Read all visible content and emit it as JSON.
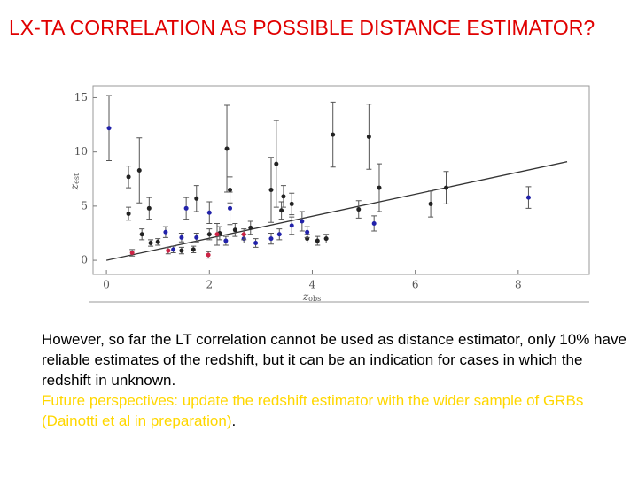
{
  "slide_title": "LX-TA CORRELATION AS POSSIBLE DISTANCE ESTIMATOR?",
  "body": {
    "text": "However, so far the LT correlation cannot be used as distance estimator, only 10% have reliable estimates of the redshift, but it can be an indication for cases in which the redshift in unknown.",
    "highlight": "Future perspectives: update the redshift estimator with the wider sample of GRBs (Dainotti et al in preparation)",
    "end": "."
  },
  "chart_data": {
    "type": "scatter",
    "x_label": "z",
    "x_label_sub": "obs",
    "y_label": "z",
    "y_label_sub": "est",
    "xlim": [
      -0.26,
      9.38
    ],
    "ylim": [
      -1.3,
      16.1
    ],
    "xticks": [
      0,
      2,
      4,
      6,
      8
    ],
    "yticks": [
      0,
      5,
      10,
      15
    ],
    "fit_line": {
      "color": "#333333",
      "x": [
        0,
        8.95
      ],
      "y": [
        0,
        9.1
      ]
    },
    "series": [
      {
        "color": "#222222",
        "x": [
          0.43,
          0.43,
          0.64,
          0.69,
          0.83,
          0.86,
          1.0,
          1.46,
          1.69,
          1.75,
          2.0,
          2.2,
          2.34,
          2.4,
          2.5,
          2.8,
          3.2,
          3.3,
          3.4,
          3.44,
          3.6,
          3.9,
          4.1,
          4.27,
          4.4,
          4.9,
          5.1,
          5.3,
          6.3,
          6.6
        ],
        "y": [
          7.7,
          4.3,
          8.3,
          2.4,
          4.8,
          1.6,
          1.7,
          0.9,
          1.0,
          5.7,
          2.4,
          2.5,
          10.3,
          6.5,
          2.8,
          3.0,
          6.5,
          8.9,
          4.6,
          5.9,
          5.2,
          2.0,
          1.8,
          2.0,
          11.6,
          4.7,
          11.4,
          6.7,
          5.2,
          6.7
        ],
        "errors": [
          1.0,
          0.6,
          3.0,
          0.5,
          1.0,
          0.3,
          0.3,
          0.3,
          0.3,
          1.2,
          0.5,
          0.6,
          4.0,
          1.2,
          0.6,
          0.6,
          3.0,
          4.0,
          0.8,
          1.0,
          1.0,
          0.4,
          0.4,
          0.4,
          3.0,
          0.8,
          3.0,
          2.2,
          1.2,
          1.5
        ]
      },
      {
        "color": "#2222aa",
        "x": [
          0.05,
          1.15,
          1.3,
          1.46,
          1.55,
          1.75,
          2.0,
          2.32,
          2.4,
          2.67,
          2.9,
          3.2,
          3.36,
          3.6,
          3.8,
          3.9,
          5.2,
          8.2
        ],
        "y": [
          12.2,
          2.6,
          1.0,
          2.1,
          4.8,
          2.1,
          4.4,
          1.8,
          4.8,
          2.0,
          1.6,
          2.0,
          2.4,
          3.2,
          3.6,
          2.6,
          3.4,
          5.8
        ],
        "errors": [
          3.0,
          0.5,
          0.3,
          0.4,
          1.0,
          0.4,
          1.0,
          0.4,
          1.5,
          0.4,
          0.4,
          0.5,
          0.5,
          0.8,
          0.9,
          0.5,
          0.7,
          1.0
        ]
      },
      {
        "color": "#cc2244",
        "x": [
          0.5,
          1.2,
          1.98,
          2.15,
          2.67
        ],
        "y": [
          0.7,
          0.9,
          0.5,
          2.4,
          2.4
        ],
        "errors": [
          0.3,
          0.3,
          0.3,
          1.0,
          0.5
        ]
      }
    ]
  }
}
